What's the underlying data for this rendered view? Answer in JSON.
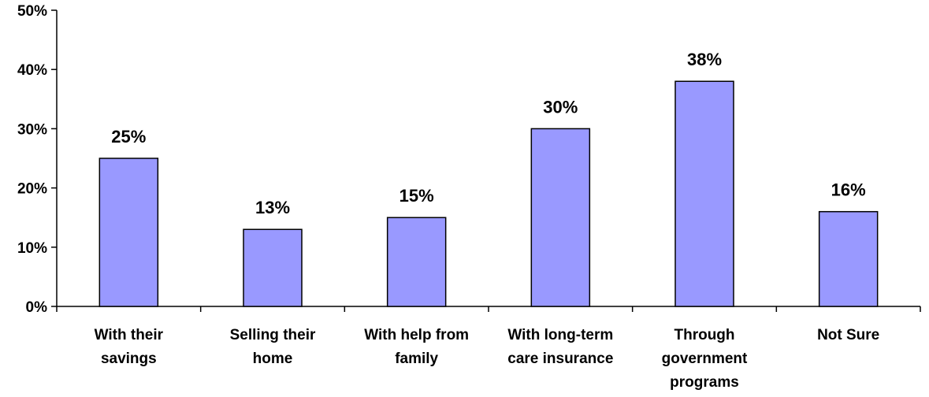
{
  "chart_data": {
    "type": "bar",
    "categories": [
      [
        "With their",
        "savings"
      ],
      [
        "Selling their",
        "home"
      ],
      [
        "With help from",
        "family"
      ],
      [
        "With long-term",
        "care insurance"
      ],
      [
        "Through",
        "government",
        "programs"
      ],
      [
        "Not Sure"
      ]
    ],
    "values": [
      25,
      13,
      15,
      30,
      38,
      16
    ],
    "data_labels": [
      "25%",
      "13%",
      "15%",
      "30%",
      "38%",
      "16%"
    ],
    "yticks": [
      0,
      10,
      20,
      30,
      40,
      50
    ],
    "ytick_labels": [
      "0%",
      "10%",
      "20%",
      "30%",
      "40%",
      "50%"
    ],
    "ylim": [
      0,
      50
    ],
    "title": "",
    "xlabel": "",
    "ylabel": "",
    "grid": false,
    "bar_color": "#9999ff",
    "bar_edge_color": "#000000"
  }
}
